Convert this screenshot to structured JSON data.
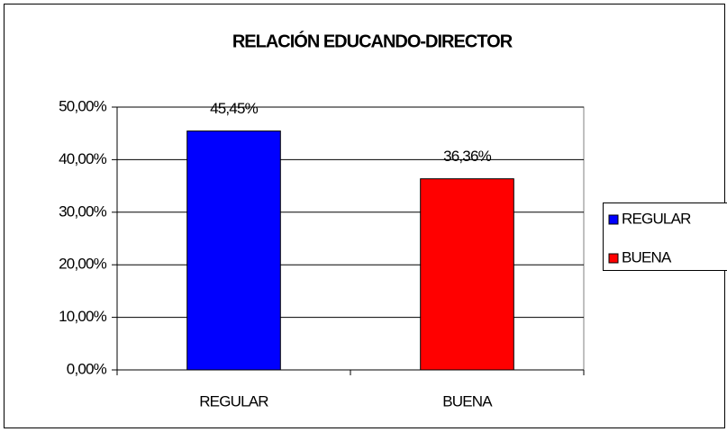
{
  "chart_data": {
    "type": "bar",
    "title": "RELACIÓN EDUCANDO-DIRECTOR",
    "categories": [
      "REGULAR",
      "BUENA"
    ],
    "values": [
      45.45,
      36.36
    ],
    "value_labels": [
      "45,45%",
      "36,36%"
    ],
    "colors": [
      "#0000ff",
      "#ff0000"
    ],
    "ylim": [
      0,
      50
    ],
    "yticks": [
      {
        "value": 0,
        "label": "0,00%"
      },
      {
        "value": 10,
        "label": "10,00%"
      },
      {
        "value": 20,
        "label": "20,00%"
      },
      {
        "value": 30,
        "label": "30,00%"
      },
      {
        "value": 40,
        "label": "40,00%"
      },
      {
        "value": 50,
        "label": "50,00%"
      }
    ],
    "grid": true,
    "legend": "right"
  }
}
